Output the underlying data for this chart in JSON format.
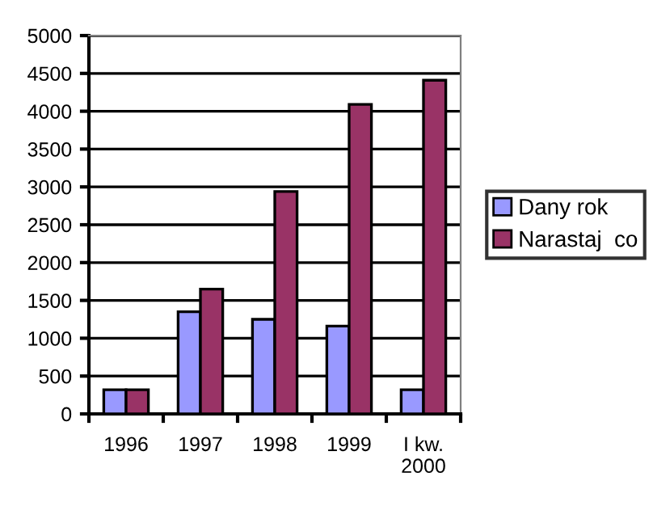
{
  "chart_data": {
    "type": "bar",
    "categories": [
      "1996",
      "1997",
      "1998",
      "1999",
      "I kw.\n2000"
    ],
    "series": [
      {
        "name": "Dany rok",
        "color": "#9999ff",
        "values": [
          320,
          1350,
          1250,
          1160,
          320
        ]
      },
      {
        "name": "Narastaj  co",
        "color": "#993366",
        "values": [
          320,
          1650,
          2940,
          4090,
          4410
        ]
      }
    ],
    "ylim": [
      0,
      5000
    ],
    "yticks": [
      0,
      500,
      1000,
      1500,
      2000,
      2500,
      3000,
      3500,
      4000,
      4500,
      5000
    ],
    "grid": "y",
    "legend": "right"
  }
}
